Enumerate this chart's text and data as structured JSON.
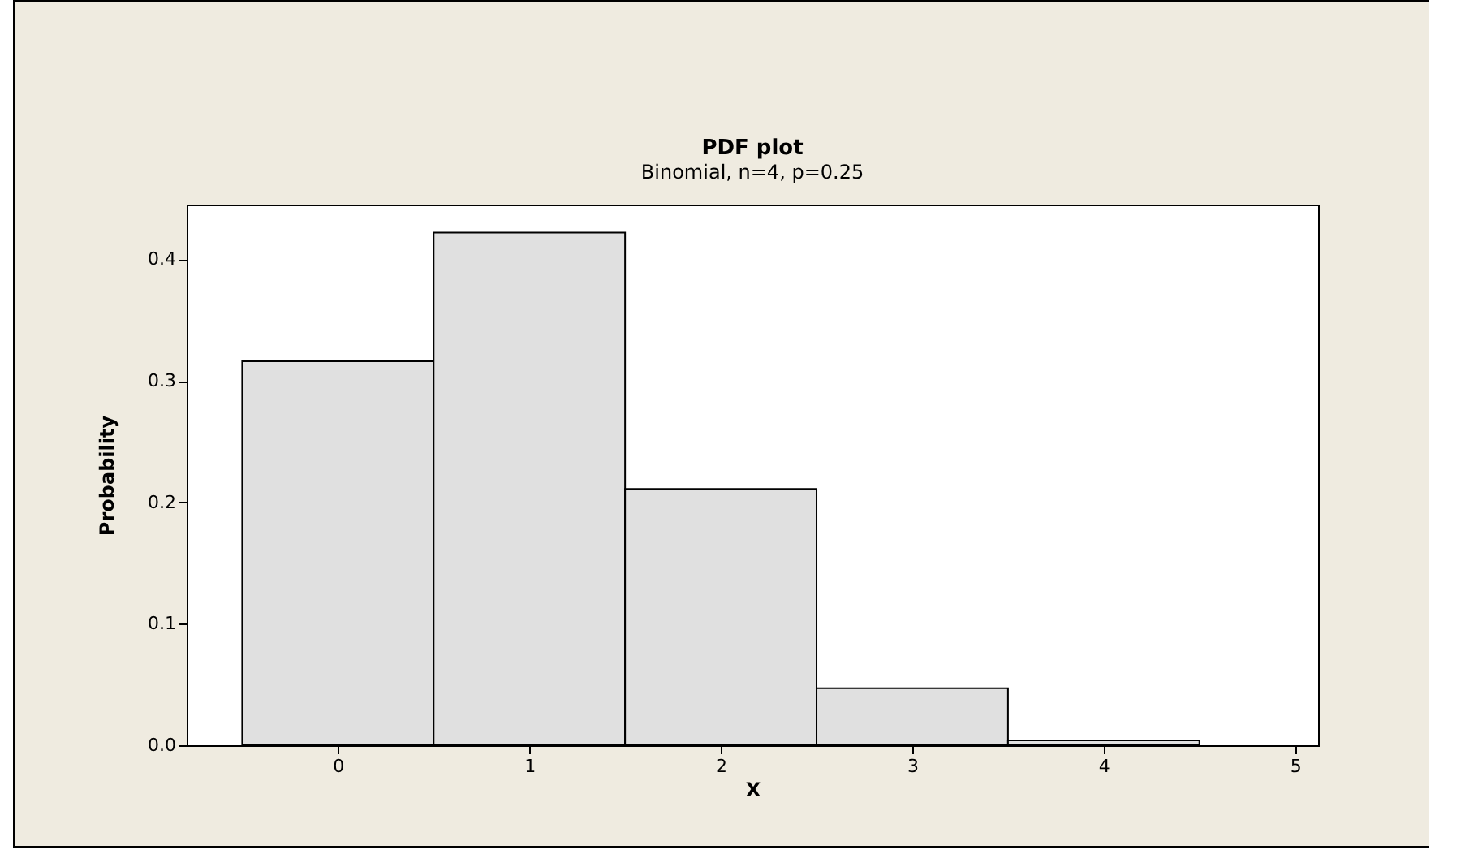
{
  "chart_data": {
    "type": "histogram",
    "title": "PDF plot",
    "subtitle": "Binomial, n=4, p=0.25",
    "xlabel": "X",
    "ylabel": "Probability",
    "bins": [
      -0.5,
      0.5,
      1.5,
      2.5,
      3.5,
      4.5
    ],
    "values": [
      0.316,
      0.422,
      0.211,
      0.047,
      0.004
    ],
    "color": "#e0e0e0",
    "xlim": [
      -0.79,
      5.12
    ],
    "xticks": [
      0,
      1,
      2,
      3,
      4,
      5
    ],
    "ylim": [
      0,
      0.445
    ],
    "yticks": [
      {
        "value": 0,
        "label": "0.0"
      },
      {
        "value": 0.1,
        "label": "0.1"
      },
      {
        "value": 0.2,
        "label": "0.2"
      },
      {
        "value": 0.3,
        "label": "0.3"
      },
      {
        "value": 0.4,
        "label": "0.4"
      }
    ]
  }
}
